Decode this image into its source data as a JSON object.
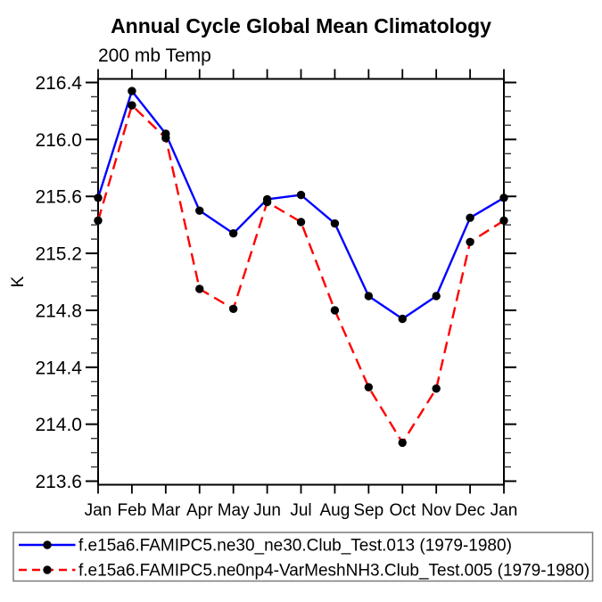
{
  "chart_data": {
    "type": "line",
    "title": "Annual Cycle Global Mean Climatology",
    "subtitle": "200 mb Temp",
    "ylabel": "K",
    "xlabel": "",
    "categories": [
      "Jan",
      "Feb",
      "Mar",
      "Apr",
      "May",
      "Jun",
      "Jul",
      "Aug",
      "Sep",
      "Oct",
      "Nov",
      "Dec",
      "Jan"
    ],
    "ylim": [
      213.575,
      216.425
    ],
    "ytick_major_start": 213.6,
    "ytick_major_step": 0.4,
    "ytick_major_end": 216.4,
    "ytick_minor_step": 0.1,
    "ytick_labels": [
      "213.6",
      "214.0",
      "214.4",
      "214.8",
      "215.2",
      "215.6",
      "216.0",
      "216.4"
    ],
    "grid": false,
    "legend_position": "bottom-outside-boxed",
    "axis_color": "#000000",
    "marker_color": "#000000",
    "series": [
      {
        "name": "f.e15a6.FAMIPC5.ne30_ne30.Club_Test.013 (1979-1980)",
        "color": "#0000ff",
        "line_style": "solid",
        "marker": "filled-circle",
        "values": [
          215.59,
          216.34,
          216.04,
          215.5,
          215.34,
          215.58,
          215.61,
          215.41,
          214.9,
          214.74,
          214.9,
          215.45,
          215.59
        ]
      },
      {
        "name": "f.e15a6.FAMIPC5.ne0np4-VarMeshNH3.Club_Test.005 (1979-1980)",
        "color": "#ff0000",
        "line_style": "dashed",
        "marker": "filled-circle",
        "values": [
          215.43,
          216.24,
          216.01,
          214.95,
          214.81,
          215.56,
          215.42,
          214.8,
          214.26,
          213.87,
          214.25,
          215.28,
          215.43
        ]
      }
    ]
  }
}
